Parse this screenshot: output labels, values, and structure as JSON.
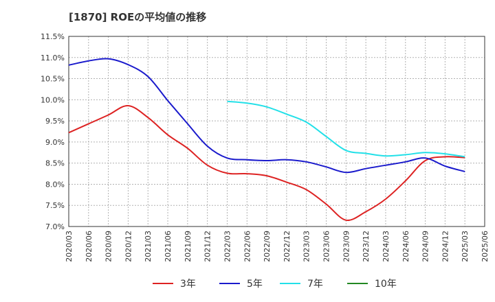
{
  "chart_data": {
    "type": "line",
    "title": "[1870]  ROEの平均値の推移",
    "xlabel": "",
    "ylabel": "",
    "ylim": [
      7.0,
      11.5
    ],
    "yticks": [
      {
        "v": 7.0,
        "label": "7.0%"
      },
      {
        "v": 7.5,
        "label": "7.5%"
      },
      {
        "v": 8.0,
        "label": "8.0%"
      },
      {
        "v": 8.5,
        "label": "8.5%"
      },
      {
        "v": 9.0,
        "label": "9.0%"
      },
      {
        "v": 9.5,
        "label": "9.5%"
      },
      {
        "v": 10.0,
        "label": "10.0%"
      },
      {
        "v": 10.5,
        "label": "10.5%"
      },
      {
        "v": 11.0,
        "label": "11.0%"
      },
      {
        "v": 11.5,
        "label": "11.5%"
      }
    ],
    "xticks": [
      "2020/03",
      "2020/06",
      "2020/09",
      "2020/12",
      "2021/03",
      "2021/06",
      "2021/09",
      "2021/12",
      "2022/03",
      "2022/06",
      "2022/09",
      "2022/12",
      "2023/03",
      "2023/06",
      "2023/09",
      "2023/12",
      "2024/03",
      "2024/06",
      "2024/09",
      "2024/12",
      "2025/03",
      "2025/06"
    ],
    "grid": true,
    "legend_position": "bottom",
    "series": [
      {
        "name": "3年",
        "color": "#dd2222",
        "x": [
          "2020/03",
          "2020/06",
          "2020/09",
          "2020/12",
          "2021/03",
          "2021/06",
          "2021/09",
          "2021/12",
          "2022/03",
          "2022/06",
          "2022/09",
          "2022/12",
          "2023/03",
          "2023/06",
          "2023/09",
          "2023/12",
          "2024/03",
          "2024/06",
          "2024/09",
          "2024/12",
          "2025/03"
        ],
        "values": [
          9.22,
          9.43,
          9.64,
          9.86,
          9.58,
          9.17,
          8.85,
          8.45,
          8.26,
          8.25,
          8.2,
          8.05,
          7.87,
          7.53,
          7.15,
          7.35,
          7.65,
          8.08,
          8.56,
          8.65,
          8.63
        ]
      },
      {
        "name": "5年",
        "color": "#1a1acc",
        "x": [
          "2020/03",
          "2020/06",
          "2020/09",
          "2020/12",
          "2021/03",
          "2021/06",
          "2021/09",
          "2021/12",
          "2022/03",
          "2022/06",
          "2022/09",
          "2022/12",
          "2023/03",
          "2023/06",
          "2023/09",
          "2023/12",
          "2024/03",
          "2024/06",
          "2024/09",
          "2024/12",
          "2025/03"
        ],
        "values": [
          10.82,
          10.92,
          10.97,
          10.83,
          10.55,
          9.98,
          9.43,
          8.9,
          8.62,
          8.58,
          8.56,
          8.58,
          8.53,
          8.41,
          8.28,
          8.37,
          8.45,
          8.53,
          8.62,
          8.43,
          8.3
        ]
      },
      {
        "name": "7年",
        "color": "#22e0e8",
        "x": [
          "2022/03",
          "2022/06",
          "2022/09",
          "2022/12",
          "2023/03",
          "2023/06",
          "2023/09",
          "2023/12",
          "2024/03",
          "2024/06",
          "2024/09",
          "2024/12",
          "2025/03"
        ],
        "values": [
          9.96,
          9.92,
          9.83,
          9.66,
          9.47,
          9.13,
          8.8,
          8.73,
          8.67,
          8.7,
          8.75,
          8.72,
          8.65
        ]
      },
      {
        "name": "10年",
        "color": "#228822",
        "x": [],
        "values": []
      }
    ]
  }
}
